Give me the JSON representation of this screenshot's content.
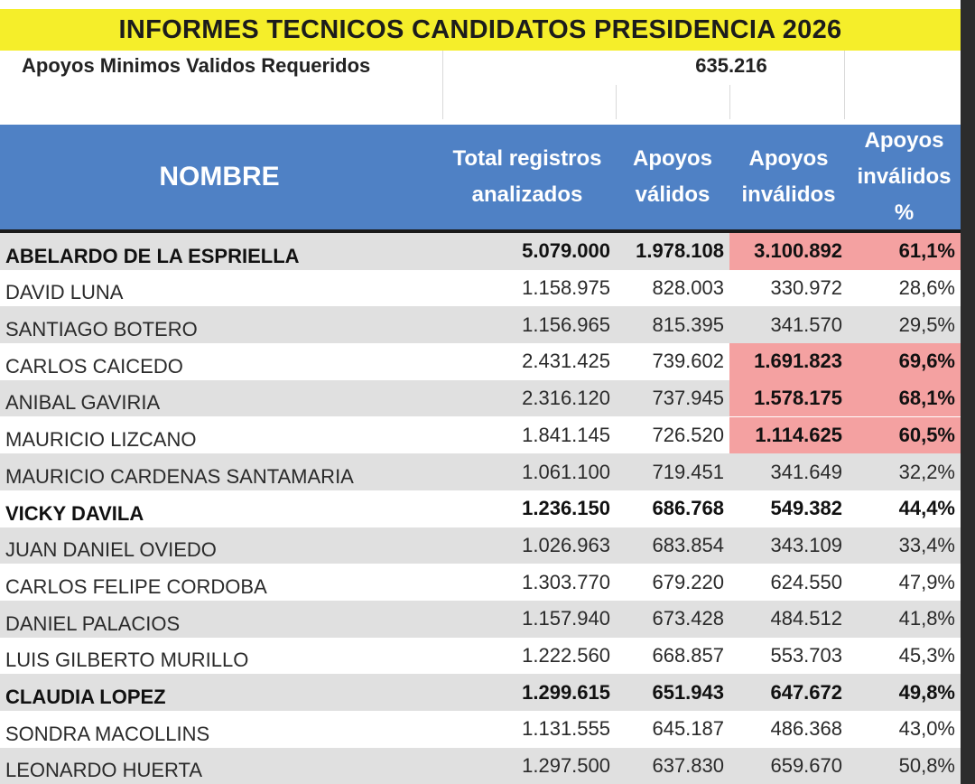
{
  "title": "INFORMES TECNICOS CANDIDATOS PRESIDENCIA 2026",
  "required": {
    "label": "Apoyos Minimos Validos Requeridos",
    "value": "635.216"
  },
  "headers": {
    "nombre": "NOMBRE",
    "total": "Total registros analizados",
    "validos": "Apoyos válidos",
    "invalidos": "Apoyos inválidos",
    "pct": "Apoyos inválidos %"
  },
  "colors": {
    "title_bg": "#f5ee2a",
    "header_bg": "#4f81c5",
    "highlight": "#f4a1a1",
    "alt_row": "#e0e0e0"
  },
  "rows": [
    {
      "nombre": "ABELARDO DE LA ESPRIELLA",
      "total": "5.079.000",
      "validos": "1.978.108",
      "invalidos": "3.100.892",
      "pct": "61,1%",
      "bold": true,
      "highlight": true
    },
    {
      "nombre": "DAVID LUNA",
      "total": "1.158.975",
      "validos": "828.003",
      "invalidos": "330.972",
      "pct": "28,6%",
      "bold": false,
      "highlight": false
    },
    {
      "nombre": "SANTIAGO BOTERO",
      "total": "1.156.965",
      "validos": "815.395",
      "invalidos": "341.570",
      "pct": "29,5%",
      "bold": false,
      "highlight": false
    },
    {
      "nombre": "CARLOS CAICEDO",
      "total": "2.431.425",
      "validos": "739.602",
      "invalidos": "1.691.823",
      "pct": "69,6%",
      "bold": false,
      "highlight": true
    },
    {
      "nombre": "ANIBAL GAVIRIA",
      "total": "2.316.120",
      "validos": "737.945",
      "invalidos": "1.578.175",
      "pct": "68,1%",
      "bold": false,
      "highlight": true
    },
    {
      "nombre": "MAURICIO LIZCANO",
      "total": "1.841.145",
      "validos": "726.520",
      "invalidos": "1.114.625",
      "pct": "60,5%",
      "bold": false,
      "highlight": true
    },
    {
      "nombre": "MAURICIO CARDENAS SANTAMARIA",
      "total": "1.061.100",
      "validos": "719.451",
      "invalidos": "341.649",
      "pct": "32,2%",
      "bold": false,
      "highlight": false
    },
    {
      "nombre": "VICKY DAVILA",
      "total": "1.236.150",
      "validos": "686.768",
      "invalidos": "549.382",
      "pct": "44,4%",
      "bold": true,
      "highlight": false
    },
    {
      "nombre": "JUAN DANIEL OVIEDO",
      "total": "1.026.963",
      "validos": "683.854",
      "invalidos": "343.109",
      "pct": "33,4%",
      "bold": false,
      "highlight": false
    },
    {
      "nombre": "CARLOS FELIPE CORDOBA",
      "total": "1.303.770",
      "validos": "679.220",
      "invalidos": "624.550",
      "pct": "47,9%",
      "bold": false,
      "highlight": false
    },
    {
      "nombre": "DANIEL PALACIOS",
      "total": "1.157.940",
      "validos": "673.428",
      "invalidos": "484.512",
      "pct": "41,8%",
      "bold": false,
      "highlight": false
    },
    {
      "nombre": "LUIS GILBERTO MURILLO",
      "total": "1.222.560",
      "validos": "668.857",
      "invalidos": "553.703",
      "pct": "45,3%",
      "bold": false,
      "highlight": false
    },
    {
      "nombre": "CLAUDIA LOPEZ",
      "total": "1.299.615",
      "validos": "651.943",
      "invalidos": "647.672",
      "pct": "49,8%",
      "bold": true,
      "highlight": false
    },
    {
      "nombre": "SONDRA MACOLLINS",
      "total": "1.131.555",
      "validos": "645.187",
      "invalidos": "486.368",
      "pct": "43,0%",
      "bold": false,
      "highlight": false
    },
    {
      "nombre": "LEONARDO HUERTA",
      "total": "1.297.500",
      "validos": "637.830",
      "invalidos": "659.670",
      "pct": "50,8%",
      "bold": false,
      "highlight": false
    }
  ]
}
